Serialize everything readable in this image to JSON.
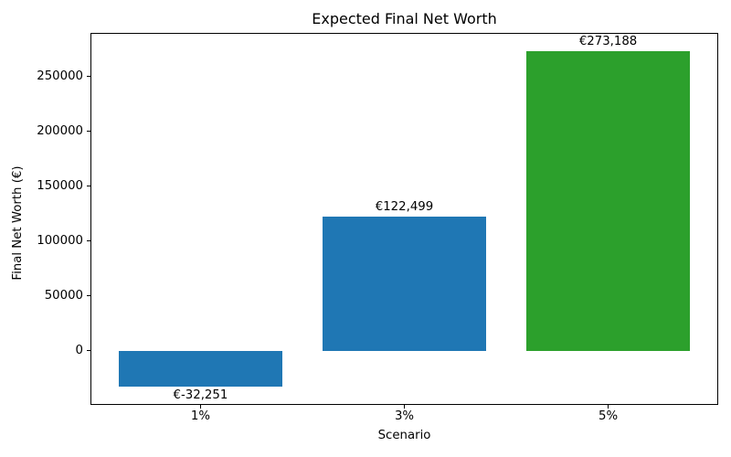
{
  "chart_data": {
    "type": "bar",
    "title": "Expected Final Net Worth",
    "xlabel": "Scenario",
    "ylabel": "Final Net Worth (€)",
    "categories": [
      "1%",
      "3%",
      "5%"
    ],
    "values": [
      -32251,
      122499,
      273188
    ],
    "bar_labels": [
      "€-32,251",
      "€122,499",
      "€273,188"
    ],
    "bar_colors": [
      "#1f77b4",
      "#1f77b4",
      "#2ca02c"
    ],
    "ytick_values": [
      0,
      50000,
      100000,
      150000,
      200000,
      250000
    ],
    "ytick_labels": [
      "0",
      "50000",
      "100000",
      "150000",
      "200000",
      "250000"
    ],
    "ylim": [
      -49167,
      290000
    ],
    "xlim": [
      -0.54,
      2.54
    ],
    "bar_width": 0.8,
    "grid": false,
    "legend_position": "none",
    "text_color": "#000000",
    "background_color": "#ffffff"
  }
}
